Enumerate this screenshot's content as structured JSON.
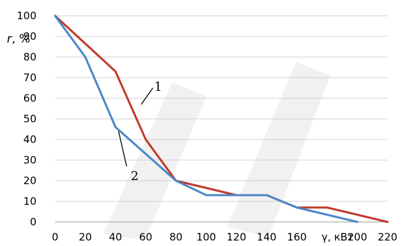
{
  "chart_data": {
    "type": "line",
    "ylabel_var": "r",
    "ylabel_unit": ", %",
    "xlabel": "γ, кВт",
    "ylim": [
      0,
      100
    ],
    "xlim": [
      0,
      220
    ],
    "yticks": [
      0,
      10,
      20,
      30,
      40,
      50,
      60,
      70,
      80,
      90,
      100
    ],
    "xticks": [
      0,
      20,
      40,
      60,
      80,
      100,
      120,
      140,
      160,
      200,
      220
    ],
    "grid": true,
    "series": [
      {
        "name": "1",
        "color": "#c0392b",
        "x": [
          0,
          40,
          60,
          80,
          120,
          140,
          160,
          180,
          220
        ],
        "y": [
          100,
          73,
          40,
          20,
          13,
          13,
          7,
          7,
          0
        ]
      },
      {
        "name": "2",
        "color": "#4a86c8",
        "x": [
          0,
          20,
          40,
          80,
          100,
          140,
          160,
          200
        ],
        "y": [
          100,
          80,
          46,
          20,
          13,
          13,
          7,
          0
        ]
      }
    ],
    "annotations": [
      "1",
      "2"
    ]
  }
}
